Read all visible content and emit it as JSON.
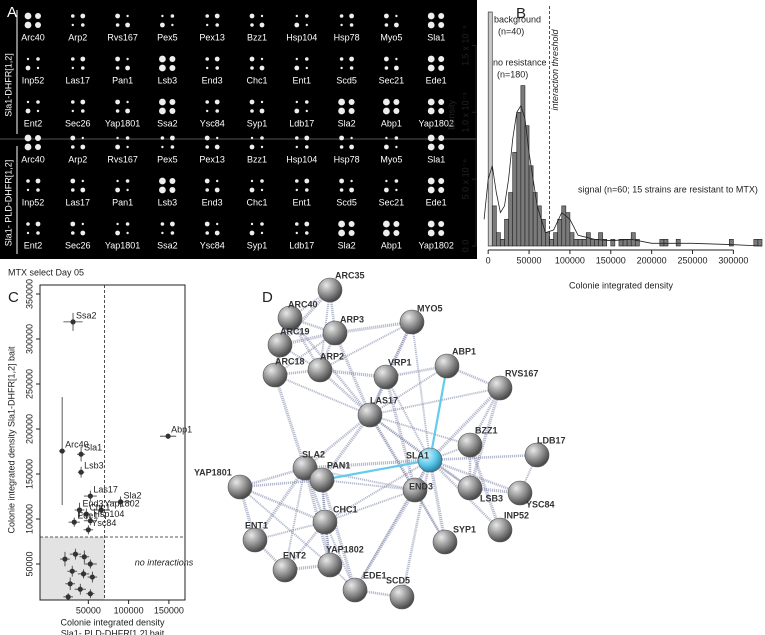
{
  "panel_a": {
    "letter": "A",
    "plates": [
      {
        "label": "Sla1-DHFR[1,2]",
        "rows": [
          [
            "Arc40",
            "Arp2",
            "Rvs167",
            "Pex5",
            "Pex13",
            "Bzz1",
            "Hsp104",
            "Hsp78",
            "Myo5",
            "Sla1"
          ],
          [
            "Inp52",
            "Las17",
            "Pan1",
            "Lsb3",
            "End3",
            "Chc1",
            "Ent1",
            "Scd5",
            "Sec21",
            "Ede1"
          ],
          [
            "Ent2",
            "Sec26",
            "Yap1801",
            "Ssa2",
            "Ysc84",
            "Syp1",
            "Ldb17",
            "Sla2",
            "Abp1",
            "Yap1802"
          ]
        ]
      },
      {
        "label": "Sla1- PLD-DHFR[1,2]",
        "rows": [
          [
            "Arc40",
            "Arp2",
            "Rvs167",
            "Pex5",
            "Pex13",
            "Bzz1",
            "Hsp104",
            "Hsp78",
            "Myo5",
            "Sla1"
          ],
          [
            "Inp52",
            "Las17",
            "Pan1",
            "Lsb3",
            "End3",
            "Chc1",
            "Ent1",
            "Scd5",
            "Sec21",
            "Ede1"
          ],
          [
            "Ent2",
            "Sec26",
            "Yap1801",
            "Ssa2",
            "Ysc84",
            "Syp1",
            "Ldb17",
            "Sla2",
            "Abp1",
            "Yap1802"
          ]
        ]
      }
    ],
    "caption": "MTX select Day 05"
  },
  "chart_data": [
    {
      "type": "histogram",
      "letter": "B",
      "xlabel": "Colonie integrated density",
      "ylabel": "Density",
      "color": "#7a7a7a",
      "bins": [
        0,
        5000,
        10000,
        15000,
        20000,
        25000,
        30000,
        35000,
        40000,
        45000,
        50000,
        55000,
        60000,
        65000,
        70000,
        75000,
        80000,
        85000,
        90000,
        95000,
        100000,
        105000,
        110000,
        115000,
        120000,
        125000,
        130000,
        135000,
        140000,
        145000,
        150000,
        155000,
        160000,
        165000,
        170000,
        175000,
        180000,
        185000,
        190000,
        195000,
        200000,
        205000,
        210000,
        215000,
        220000,
        225000,
        230000,
        235000,
        240000,
        245000,
        250000,
        255000,
        260000,
        265000,
        270000,
        275000,
        280000,
        285000,
        290000,
        295000,
        300000,
        305000,
        310000,
        315000,
        320000,
        325000,
        330000,
        335000
      ],
      "values": [
        1.75e-05,
        3e-06,
        1e-06,
        5e-07,
        2e-06,
        4e-06,
        7e-06,
        1e-05,
        1.2e-05,
        9e-06,
        6e-06,
        4e-06,
        3e-06,
        2e-06,
        1e-06,
        5e-07,
        1e-06,
        2e-06,
        3e-06,
        2.5e-06,
        1e-06,
        5e-07,
        5e-07,
        5e-07,
        1e-06,
        5e-07,
        5e-07,
        1e-06,
        5e-07,
        0,
        5e-07,
        0,
        5e-07,
        5e-07,
        5e-07,
        1e-06,
        5e-07,
        0,
        0,
        0,
        0,
        0,
        5e-07,
        5e-07,
        0,
        0,
        5e-07,
        0,
        0,
        0,
        0,
        0,
        0,
        0,
        0,
        0,
        0,
        0,
        0,
        5e-07,
        0,
        0,
        0,
        0,
        0,
        5e-07,
        5e-07
      ],
      "density_curve": {
        "x": [
          -5000,
          0,
          5000,
          10000,
          15000,
          20000,
          25000,
          30000,
          35000,
          40000,
          45000,
          50000,
          60000,
          70000,
          80000,
          90000,
          100000,
          110000,
          130000,
          150000,
          175000,
          200000,
          250000,
          300000,
          335000
        ],
        "y": [
          2e-06,
          5e-06,
          6e-06,
          4e-06,
          2.5e-06,
          3e-06,
          5e-06,
          8e-06,
          1e-05,
          1.05e-05,
          9.5e-06,
          7e-06,
          3e-06,
          1e-06,
          1.2e-06,
          2.5e-06,
          2e-06,
          8e-07,
          5e-07,
          4e-07,
          5e-07,
          2e-07,
          2e-07,
          1e-07,
          0
        ]
      },
      "threshold": 75000,
      "threshold_label": "interaction threshold",
      "annotations": [
        [
          "background",
          "(n=40)"
        ],
        [
          "no resistance",
          "(n=180)"
        ],
        [
          "signal (n=60; 15 strains are resistant to MTX)"
        ]
      ],
      "xlim": [
        -10000,
        335000
      ],
      "ylim": [
        0,
        1.75e-05
      ],
      "xticks": [
        0,
        50000,
        100000,
        150000,
        200000,
        250000,
        300000
      ],
      "yticks": [
        {
          "value": 0,
          "label": "0.0"
        },
        {
          "value": 5e-06,
          "label": "5.0 x 10⁻⁶"
        },
        {
          "value": 1e-05,
          "label": "1.0 x 10⁻⁵"
        },
        {
          "value": 1.5e-05,
          "label": "1.5 x 10⁻⁵"
        }
      ]
    },
    {
      "type": "scatter",
      "letter": "C",
      "xlabel": [
        "Colonie integrated density",
        "Sla1- PLD-DHFR[1,2] bait"
      ],
      "ylabel": "Colonie integrated density Sla1-DHFR[1,2] bait",
      "region_label": "no interactions",
      "color": "#333333",
      "labels": [
        "Ssa2",
        "Abp1",
        "Arc40",
        "Sla1",
        "Lsb3",
        "Las17",
        "Sla2",
        "Yap1802",
        "End3",
        "Chc1",
        "Hsp104",
        "Ede1",
        "Ysc84",
        null,
        null,
        null,
        null,
        null,
        null,
        null,
        null,
        null,
        null,
        null
      ],
      "x": [
        31000,
        149000,
        17500,
        41000,
        41000,
        52500,
        90000,
        66000,
        39000,
        47500,
        52500,
        32500,
        50000,
        21000,
        34000,
        45000,
        52500,
        30000,
        44000,
        55000,
        27500,
        40000,
        52500,
        25000
      ],
      "values": [
        319000,
        192000,
        175500,
        172000,
        152000,
        125500,
        119000,
        110000,
        110000,
        105500,
        98000,
        96500,
        88000,
        55500,
        61000,
        58000,
        50000,
        42000,
        39000,
        35500,
        28000,
        22000,
        17000,
        13500
      ],
      "x_err": [
        12000,
        10000,
        4000,
        5000,
        4000,
        8000,
        14000,
        10000,
        6000,
        6000,
        8000,
        7000,
        6000,
        6000,
        7000,
        6000,
        8000,
        6000,
        7000,
        6000,
        6000,
        7000,
        5000,
        6000
      ],
      "y_err": [
        10000,
        3000,
        60000,
        8000,
        6000,
        6000,
        6000,
        6000,
        8000,
        6000,
        5000,
        5000,
        5000,
        8000,
        6000,
        7000,
        5000,
        6000,
        5000,
        6000,
        7000,
        6000,
        5000,
        4000
      ],
      "x_threshold": 70000,
      "y_threshold": 80000,
      "xlim": [
        -10000,
        170000
      ],
      "ylim": [
        10000,
        360000
      ],
      "xticks": [
        50000,
        100000,
        150000
      ],
      "yticks": [
        50000,
        100000,
        150000,
        200000,
        250000,
        300000,
        350000
      ]
    }
  ],
  "network": {
    "letter": "D",
    "nodes": [
      "ARC35",
      "ARC40",
      "ARP3",
      "MYO5",
      "ARC19",
      "ARC18",
      "ARP2",
      "VRP1",
      "ABP1",
      "RVS167",
      "LAS17",
      "BZZ1",
      "LDB17",
      "SLA1",
      "SLA2",
      "PAN1",
      "YAP1801",
      "LSB3",
      "YSC84",
      "END3",
      "CHC1",
      "INP52",
      "SYP1",
      "ENT1",
      "ENT2",
      "YAP1802",
      "EDE1",
      "SCD5"
    ]
  }
}
